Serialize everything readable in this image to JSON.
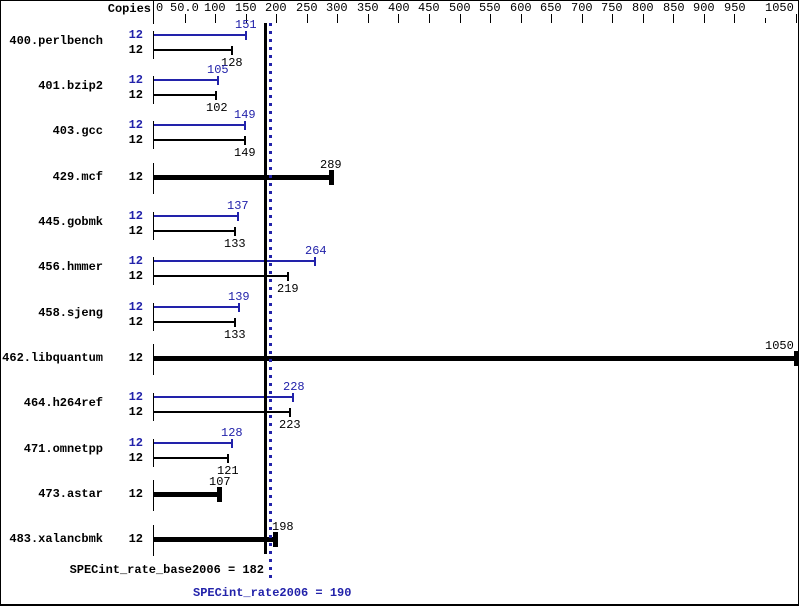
{
  "chart_data": {
    "type": "bar",
    "orientation": "horizontal",
    "copies_header": "Copies",
    "x_axis": {
      "min": 0,
      "max": 1050,
      "ticks": [
        {
          "value": 0,
          "label": "0",
          "align": "left"
        },
        {
          "value": 50,
          "label": "50.0"
        },
        {
          "value": 100,
          "label": "100"
        },
        {
          "value": 150,
          "label": "150"
        },
        {
          "value": 200,
          "label": "200"
        },
        {
          "value": 250,
          "label": "250"
        },
        {
          "value": 300,
          "label": "300"
        },
        {
          "value": 350,
          "label": "350"
        },
        {
          "value": 400,
          "label": "400"
        },
        {
          "value": 450,
          "label": "450"
        },
        {
          "value": 500,
          "label": "500"
        },
        {
          "value": 550,
          "label": "550"
        },
        {
          "value": 600,
          "label": "600"
        },
        {
          "value": 650,
          "label": "650"
        },
        {
          "value": 700,
          "label": "700"
        },
        {
          "value": 750,
          "label": "750"
        },
        {
          "value": 800,
          "label": "800"
        },
        {
          "value": 850,
          "label": "850"
        },
        {
          "value": 900,
          "label": "900"
        },
        {
          "value": 950,
          "label": "950"
        },
        {
          "value": 1000,
          "label": "",
          "short": true
        },
        {
          "value": 1050,
          "label": "1050",
          "align": "right"
        }
      ]
    },
    "benchmarks": [
      {
        "name": "400.perlbench",
        "copies": 12,
        "peak": 151,
        "base": 128
      },
      {
        "name": "401.bzip2",
        "copies": 12,
        "peak": 105,
        "base": 102
      },
      {
        "name": "403.gcc",
        "copies": 12,
        "peak": 149,
        "base": 149
      },
      {
        "name": "429.mcf",
        "copies": 12,
        "merged": true,
        "value": 289
      },
      {
        "name": "445.gobmk",
        "copies": 12,
        "peak": 137,
        "base": 133
      },
      {
        "name": "456.hmmer",
        "copies": 12,
        "peak": 264,
        "base": 219
      },
      {
        "name": "458.sjeng",
        "copies": 12,
        "peak": 139,
        "base": 133
      },
      {
        "name": "462.libquantum",
        "copies": 12,
        "merged": true,
        "value": 1050
      },
      {
        "name": "464.h264ref",
        "copies": 12,
        "peak": 228,
        "base": 223
      },
      {
        "name": "471.omnetpp",
        "copies": 12,
        "peak": 128,
        "base": 121
      },
      {
        "name": "473.astar",
        "copies": 12,
        "merged": true,
        "value": 107
      },
      {
        "name": "483.xalancbmk",
        "copies": 12,
        "merged": true,
        "value": 198,
        "label_dx": 8
      }
    ],
    "reference_lines": [
      {
        "label": "SPECint_rate_base2006 = 182",
        "value": 182,
        "style": "solid",
        "color": "#000000"
      },
      {
        "label": "SPECint_rate2006 = 190",
        "value": 190,
        "style": "dotted",
        "color": "#2222aa"
      }
    ],
    "colors": {
      "peak": "#2222aa",
      "base": "#000000",
      "background": "#ffffff"
    }
  }
}
